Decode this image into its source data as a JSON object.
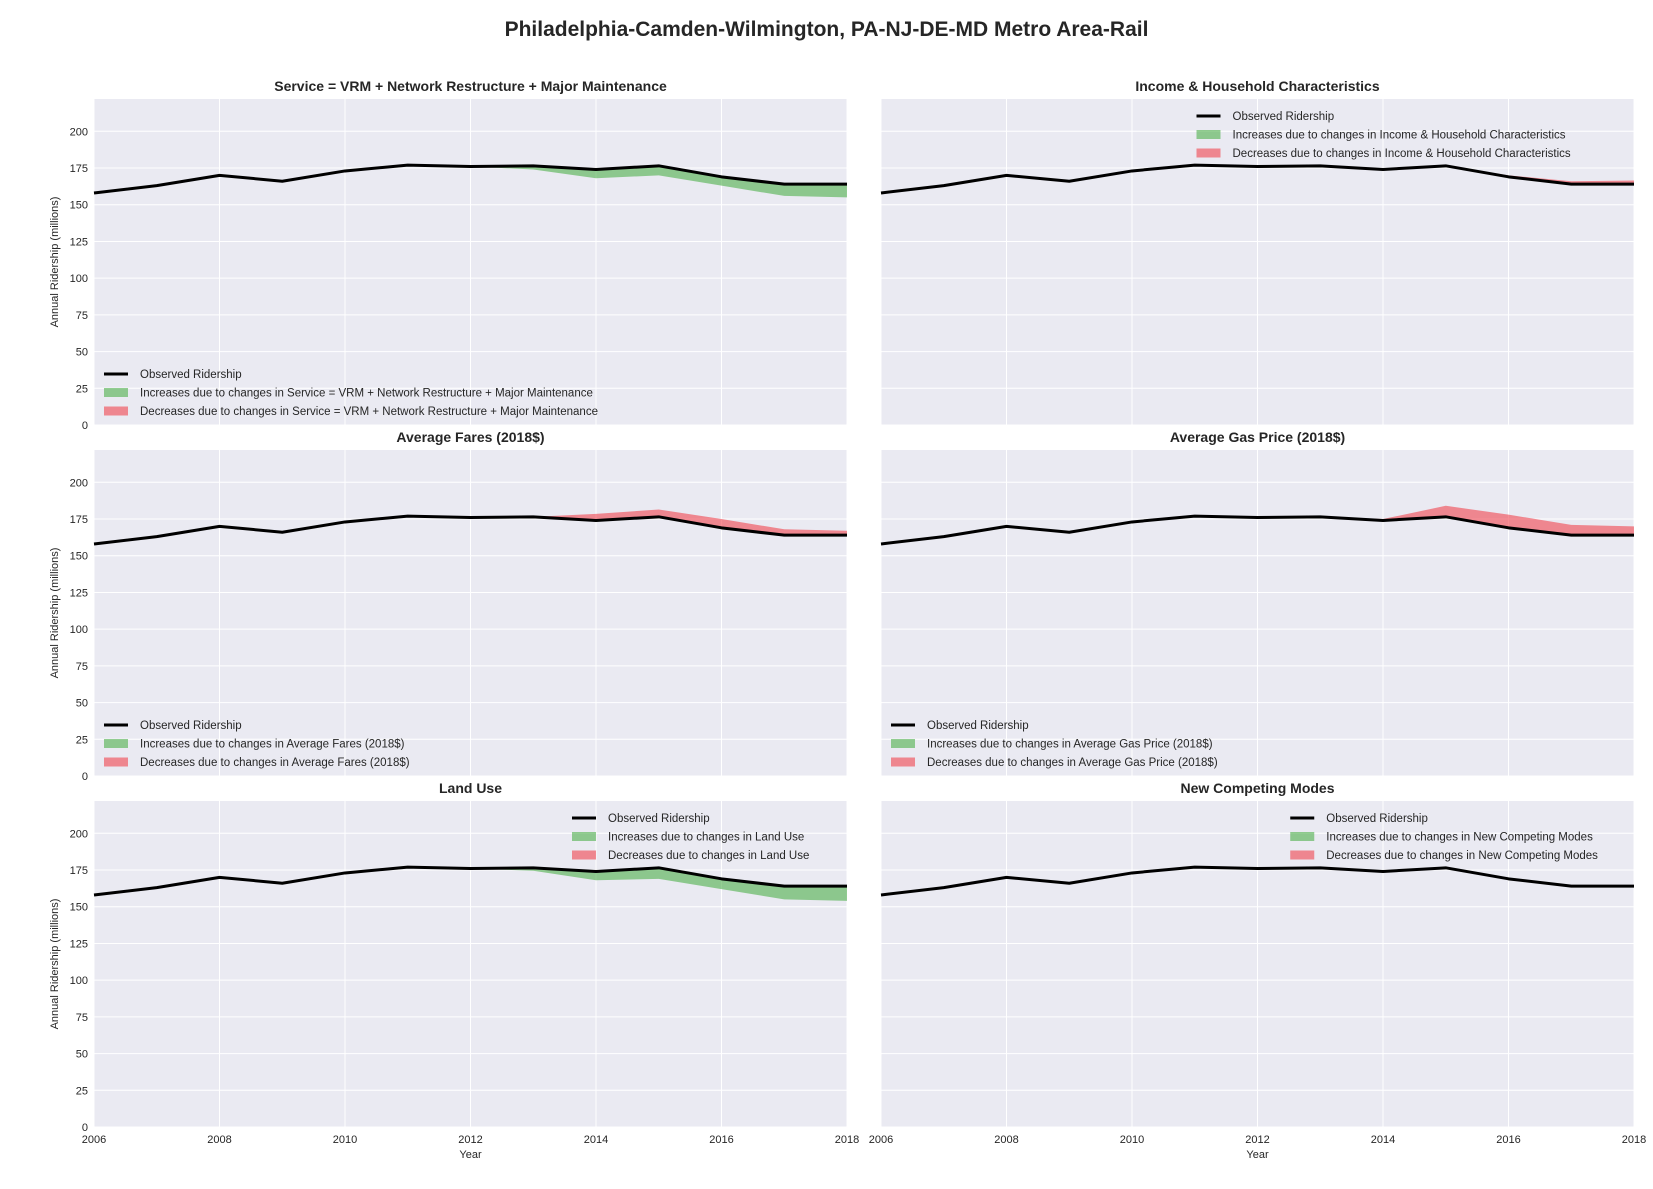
{
  "title": "Philadelphia-Camden-Wilmington, PA-NJ-DE-MD Metro Area-Rail",
  "colors": {
    "observed": "#000000",
    "increase": "#4daf4a",
    "decrease": "#f0434d",
    "plot_bg": "#eaeaf2",
    "grid": "#ffffff"
  },
  "chart_data": [
    {
      "type": "area",
      "title": "Service = VRM + Network Restructure + Major Maintenance",
      "xlabel": "",
      "ylabel": "Annual Ridership (millions)",
      "xlim": [
        2006,
        2018
      ],
      "ylim": [
        0,
        222
      ],
      "legend_position": "lower-left",
      "x": [
        2006,
        2007,
        2008,
        2009,
        2010,
        2011,
        2012,
        2013,
        2014,
        2015,
        2016,
        2017,
        2018
      ],
      "observed": [
        158,
        163,
        170,
        166,
        173,
        177,
        176,
        176.5,
        174,
        176.5,
        169,
        164,
        164
      ],
      "series": [
        {
          "name": "Observed Ridership",
          "values": [
            158,
            163,
            170,
            166,
            173,
            177,
            176,
            176.5,
            174,
            176.5,
            169,
            164,
            164
          ]
        },
        {
          "name": "Increases due to changes in Service = VRM + Network Restructure + Major Maintenance",
          "values": [
            158,
            163,
            170,
            166,
            173,
            177,
            176,
            174,
            168,
            170,
            163,
            156,
            155
          ]
        },
        {
          "name": "Decreases due to changes in Service = VRM + Network Restructure + Major Maintenance",
          "values": [
            158,
            163,
            170,
            166,
            173,
            177,
            176,
            176.5,
            174,
            176.5,
            169,
            164,
            164
          ]
        }
      ]
    },
    {
      "type": "area",
      "title": "Income & Household Characteristics",
      "xlabel": "",
      "ylabel": "",
      "xlim": [
        2006,
        2018
      ],
      "ylim": [
        0,
        222
      ],
      "legend_position": "upper-right",
      "x": [
        2006,
        2007,
        2008,
        2009,
        2010,
        2011,
        2012,
        2013,
        2014,
        2015,
        2016,
        2017,
        2018
      ],
      "observed": [
        158,
        163,
        170,
        166,
        173,
        177,
        176,
        176.5,
        174,
        176.5,
        169,
        164,
        164
      ],
      "series": [
        {
          "name": "Observed Ridership",
          "values": [
            158,
            163,
            170,
            166,
            173,
            177,
            176,
            176.5,
            174,
            176.5,
            169,
            164,
            164
          ]
        },
        {
          "name": "Increases due to changes in Income & Household Characteristics",
          "values": [
            158,
            163,
            170,
            166,
            173,
            177,
            176,
            176.5,
            174,
            176.5,
            169,
            164,
            164
          ]
        },
        {
          "name": "Decreases due to changes in Income & Household Characteristics",
          "values": [
            158,
            163,
            170,
            166,
            173,
            177,
            176,
            176.5,
            174,
            176.5,
            170,
            166,
            166.5
          ]
        }
      ]
    },
    {
      "type": "area",
      "title": "Average Fares (2018$)",
      "xlabel": "",
      "ylabel": "Annual Ridership (millions)",
      "xlim": [
        2006,
        2018
      ],
      "ylim": [
        0,
        222
      ],
      "legend_position": "lower-left",
      "x": [
        2006,
        2007,
        2008,
        2009,
        2010,
        2011,
        2012,
        2013,
        2014,
        2015,
        2016,
        2017,
        2018
      ],
      "observed": [
        158,
        163,
        170,
        166,
        173,
        177,
        176,
        176.5,
        174,
        176.5,
        169,
        164,
        164
      ],
      "series": [
        {
          "name": "Observed Ridership",
          "values": [
            158,
            163,
            170,
            166,
            173,
            177,
            176,
            176.5,
            174,
            176.5,
            169,
            164,
            164
          ]
        },
        {
          "name": "Increases due to changes in Average Fares (2018$)",
          "values": [
            158,
            163,
            170,
            166,
            173,
            177,
            176,
            176.5,
            174,
            176.5,
            169,
            164,
            164
          ]
        },
        {
          "name": "Decreases due to changes in Average Fares (2018$)",
          "values": [
            158,
            163,
            170,
            166,
            173,
            177,
            176,
            176.5,
            178.5,
            181.5,
            175,
            168,
            167
          ]
        }
      ]
    },
    {
      "type": "area",
      "title": "Average Gas Price (2018$)",
      "xlabel": "",
      "ylabel": "",
      "xlim": [
        2006,
        2018
      ],
      "ylim": [
        0,
        222
      ],
      "legend_position": "lower-left",
      "x": [
        2006,
        2007,
        2008,
        2009,
        2010,
        2011,
        2012,
        2013,
        2014,
        2015,
        2016,
        2017,
        2018
      ],
      "observed": [
        158,
        163,
        170,
        166,
        173,
        177,
        176,
        176.5,
        174,
        176.5,
        169,
        164,
        164
      ],
      "series": [
        {
          "name": "Observed Ridership",
          "values": [
            158,
            163,
            170,
            166,
            173,
            177,
            176,
            176.5,
            174,
            176.5,
            169,
            164,
            164
          ]
        },
        {
          "name": "Increases due to changes in Average Gas Price (2018$)",
          "values": [
            158,
            163,
            170,
            166,
            173,
            177,
            176,
            176.5,
            173.5,
            176.5,
            169,
            164,
            164
          ]
        },
        {
          "name": "Decreases due to changes in Average Gas Price (2018$)",
          "values": [
            158,
            163,
            170,
            166,
            173,
            177,
            176,
            176.5,
            175,
            184,
            178,
            171,
            170
          ]
        }
      ]
    },
    {
      "type": "area",
      "title": "Land Use",
      "xlabel": "Year",
      "ylabel": "Annual Ridership (millions)",
      "xlim": [
        2006,
        2018
      ],
      "ylim": [
        0,
        222
      ],
      "legend_position": "upper-right",
      "x": [
        2006,
        2007,
        2008,
        2009,
        2010,
        2011,
        2012,
        2013,
        2014,
        2015,
        2016,
        2017,
        2018
      ],
      "observed": [
        158,
        163,
        170,
        166,
        173,
        177,
        176,
        176.5,
        174,
        176.5,
        169,
        164,
        164
      ],
      "series": [
        {
          "name": "Observed Ridership",
          "values": [
            158,
            163,
            170,
            166,
            173,
            177,
            176,
            176.5,
            174,
            176.5,
            169,
            164,
            164
          ]
        },
        {
          "name": "Increases due to changes in Land Use",
          "values": [
            158,
            163,
            170,
            166,
            173,
            177,
            176,
            174.5,
            168,
            169,
            162,
            155,
            154
          ]
        },
        {
          "name": "Decreases due to changes in Land Use",
          "values": [
            158,
            163,
            170,
            166,
            173,
            177,
            176,
            176.5,
            174,
            176.5,
            169,
            164,
            164
          ]
        }
      ]
    },
    {
      "type": "area",
      "title": "New Competing Modes",
      "xlabel": "Year",
      "ylabel": "",
      "xlim": [
        2006,
        2018
      ],
      "ylim": [
        0,
        222
      ],
      "legend_position": "upper-right",
      "x": [
        2006,
        2007,
        2008,
        2009,
        2010,
        2011,
        2012,
        2013,
        2014,
        2015,
        2016,
        2017,
        2018
      ],
      "observed": [
        158,
        163,
        170,
        166,
        173,
        177,
        176,
        176.5,
        174,
        176.5,
        169,
        164,
        164
      ],
      "series": [
        {
          "name": "Observed Ridership",
          "values": [
            158,
            163,
            170,
            166,
            173,
            177,
            176,
            176.5,
            174,
            176.5,
            169,
            164,
            164
          ]
        },
        {
          "name": "Increases due to changes in New Competing Modes",
          "values": [
            158,
            163,
            170,
            166,
            173,
            177,
            176,
            176.5,
            174,
            176.5,
            169,
            164,
            164
          ]
        },
        {
          "name": "Decreases due to changes in New Competing Modes",
          "values": [
            158,
            163,
            170,
            166,
            173,
            177,
            176,
            176.5,
            174,
            176.5,
            169,
            164,
            164
          ]
        }
      ]
    }
  ],
  "axes": {
    "yticks": [
      0,
      25,
      50,
      75,
      100,
      125,
      150,
      175,
      200
    ],
    "xticks": [
      2006,
      2008,
      2010,
      2012,
      2014,
      2016,
      2018
    ]
  }
}
